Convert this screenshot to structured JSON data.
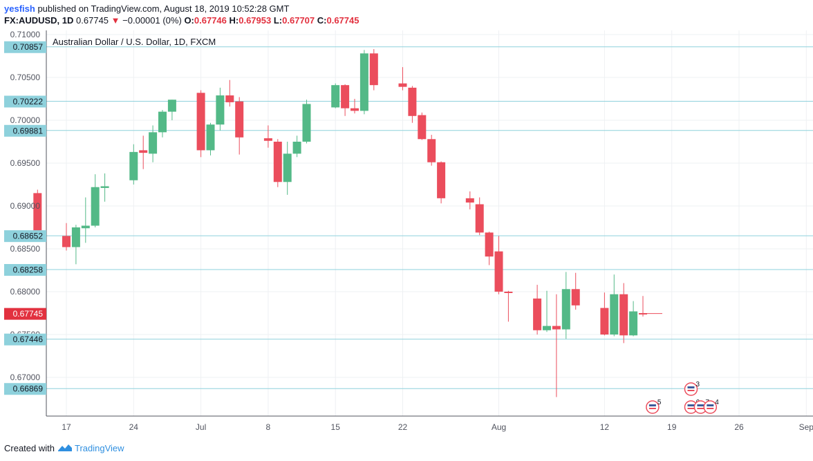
{
  "header": {
    "author": "yesfish",
    "published_text": "published on TradingView.com, August 18, 2019 10:52:28 GMT"
  },
  "ticker": {
    "symbol": "FX:AUDUSD, 1D",
    "last": "0.67745",
    "arrow": "▼",
    "change": "−0.00001 (0%)",
    "o_label": "O:",
    "o_value": "0.67746",
    "h_label": "H:",
    "h_value": "0.67953",
    "l_label": "L:",
    "l_value": "0.67707",
    "c_label": "C:",
    "c_value": "0.67745"
  },
  "footer": {
    "created_with": "Created with",
    "brand": "TradingView"
  },
  "colors": {
    "up": "#53b987",
    "down": "#eb4d5c",
    "hline": "#8ed1dc",
    "label_bg": "#8ed1dc",
    "price_bg": "#e2313f",
    "grid": "#eef0f3"
  },
  "chart_data": {
    "type": "candlestick",
    "title": "Australian Dollar / U.S. Dollar, 1D, FXCM",
    "ylim": [
      0.6655,
      0.7105
    ],
    "y_ticks": [
      "0.71000",
      "0.70500",
      "0.70000",
      "0.69500",
      "0.69000",
      "0.68500",
      "0.68000",
      "0.67500",
      "0.67000"
    ],
    "x_ticks": [
      {
        "label": "17",
        "date": "2019-06-17"
      },
      {
        "label": "24",
        "date": "2019-06-24"
      },
      {
        "label": "Jul",
        "date": "2019-07-01"
      },
      {
        "label": "8",
        "date": "2019-07-08"
      },
      {
        "label": "15",
        "date": "2019-07-15"
      },
      {
        "label": "22",
        "date": "2019-07-22"
      },
      {
        "label": "Aug",
        "date": "2019-08-01"
      },
      {
        "label": "12",
        "date": "2019-08-12"
      },
      {
        "label": "19",
        "date": "2019-08-19"
      },
      {
        "label": "26",
        "date": "2019-08-26"
      },
      {
        "label": "Sep",
        "date": "2019-09-02"
      }
    ],
    "horizontal_levels": [
      "0.70857",
      "0.70222",
      "0.69881",
      "0.68652",
      "0.68258",
      "0.67446",
      "0.66869"
    ],
    "last_price": "0.67745",
    "candles": [
      {
        "date": "2019-06-14",
        "o": 0.6915,
        "h": 0.6919,
        "l": 0.686,
        "c": 0.6867
      },
      {
        "date": "2019-06-17",
        "o": 0.6865,
        "h": 0.688,
        "l": 0.6848,
        "c": 0.6852
      },
      {
        "date": "2019-06-18",
        "o": 0.6852,
        "h": 0.6878,
        "l": 0.6832,
        "c": 0.6875
      },
      {
        "date": "2019-06-19",
        "o": 0.6874,
        "h": 0.691,
        "l": 0.6857,
        "c": 0.6877
      },
      {
        "date": "2019-06-20",
        "o": 0.6877,
        "h": 0.6937,
        "l": 0.6875,
        "c": 0.6922
      },
      {
        "date": "2019-06-21",
        "o": 0.6921,
        "h": 0.6938,
        "l": 0.6905,
        "c": 0.6923
      },
      {
        "date": "2019-06-24",
        "o": 0.693,
        "h": 0.6972,
        "l": 0.6925,
        "c": 0.6963
      },
      {
        "date": "2019-06-25",
        "o": 0.6965,
        "h": 0.6982,
        "l": 0.6943,
        "c": 0.6962
      },
      {
        "date": "2019-06-26",
        "o": 0.6961,
        "h": 0.6994,
        "l": 0.6951,
        "c": 0.6986
      },
      {
        "date": "2019-06-27",
        "o": 0.6986,
        "h": 0.7012,
        "l": 0.698,
        "c": 0.701
      },
      {
        "date": "2019-06-28",
        "o": 0.701,
        "h": 0.7024,
        "l": 0.7,
        "c": 0.7024
      },
      {
        "date": "2019-07-01",
        "o": 0.7032,
        "h": 0.7035,
        "l": 0.6957,
        "c": 0.6965
      },
      {
        "date": "2019-07-02",
        "o": 0.6965,
        "h": 0.6997,
        "l": 0.6959,
        "c": 0.6995
      },
      {
        "date": "2019-07-03",
        "o": 0.6995,
        "h": 0.7038,
        "l": 0.6988,
        "c": 0.7029
      },
      {
        "date": "2019-07-04",
        "o": 0.7029,
        "h": 0.7047,
        "l": 0.7016,
        "c": 0.7021
      },
      {
        "date": "2019-07-05",
        "o": 0.7022,
        "h": 0.7027,
        "l": 0.696,
        "c": 0.698
      },
      {
        "date": "2019-07-08",
        "o": 0.6979,
        "h": 0.6994,
        "l": 0.6968,
        "c": 0.6976
      },
      {
        "date": "2019-07-09",
        "o": 0.6975,
        "h": 0.6978,
        "l": 0.6922,
        "c": 0.6928
      },
      {
        "date": "2019-07-10",
        "o": 0.6928,
        "h": 0.6975,
        "l": 0.6913,
        "c": 0.6961
      },
      {
        "date": "2019-07-11",
        "o": 0.6961,
        "h": 0.6982,
        "l": 0.6957,
        "c": 0.6975
      },
      {
        "date": "2019-07-12",
        "o": 0.6975,
        "h": 0.7024,
        "l": 0.6973,
        "c": 0.7019
      },
      {
        "date": "2019-07-15",
        "o": 0.7015,
        "h": 0.7043,
        "l": 0.7014,
        "c": 0.7041
      },
      {
        "date": "2019-07-16",
        "o": 0.7041,
        "h": 0.7042,
        "l": 0.7005,
        "c": 0.7014
      },
      {
        "date": "2019-07-17",
        "o": 0.7014,
        "h": 0.7025,
        "l": 0.7008,
        "c": 0.7011
      },
      {
        "date": "2019-07-18",
        "o": 0.7011,
        "h": 0.7082,
        "l": 0.7007,
        "c": 0.7078
      },
      {
        "date": "2019-07-19",
        "o": 0.7078,
        "h": 0.7083,
        "l": 0.7035,
        "c": 0.7041
      },
      {
        "date": "2019-07-22",
        "o": 0.7043,
        "h": 0.7062,
        "l": 0.7035,
        "c": 0.7039
      },
      {
        "date": "2019-07-23",
        "o": 0.7038,
        "h": 0.704,
        "l": 0.6997,
        "c": 0.7005
      },
      {
        "date": "2019-07-24",
        "o": 0.7006,
        "h": 0.7009,
        "l": 0.6977,
        "c": 0.6978
      },
      {
        "date": "2019-07-25",
        "o": 0.6978,
        "h": 0.6983,
        "l": 0.6947,
        "c": 0.6951
      },
      {
        "date": "2019-07-26",
        "o": 0.6951,
        "h": 0.6952,
        "l": 0.6903,
        "c": 0.6909
      },
      {
        "date": "2019-07-29",
        "o": 0.6909,
        "h": 0.6917,
        "l": 0.6896,
        "c": 0.6904
      },
      {
        "date": "2019-07-30",
        "o": 0.6902,
        "h": 0.691,
        "l": 0.6866,
        "c": 0.6869
      },
      {
        "date": "2019-07-31",
        "o": 0.6869,
        "h": 0.687,
        "l": 0.6831,
        "c": 0.6841
      },
      {
        "date": "2019-08-01",
        "o": 0.6847,
        "h": 0.6865,
        "l": 0.6797,
        "c": 0.68
      },
      {
        "date": "2019-08-02",
        "o": 0.68,
        "h": 0.6801,
        "l": 0.6765,
        "c": 0.6799
      },
      {
        "date": "2019-08-05",
        "o": 0.6792,
        "h": 0.6808,
        "l": 0.675,
        "c": 0.6755
      },
      {
        "date": "2019-08-06",
        "o": 0.6755,
        "h": 0.6801,
        "l": 0.6753,
        "c": 0.676
      },
      {
        "date": "2019-08-07",
        "o": 0.676,
        "h": 0.6797,
        "l": 0.6677,
        "c": 0.6756
      },
      {
        "date": "2019-08-08",
        "o": 0.6756,
        "h": 0.6823,
        "l": 0.6745,
        "c": 0.6803
      },
      {
        "date": "2019-08-09",
        "o": 0.6803,
        "h": 0.6822,
        "l": 0.6779,
        "c": 0.6784
      },
      {
        "date": "2019-08-12",
        "o": 0.6781,
        "h": 0.6799,
        "l": 0.6749,
        "c": 0.675
      },
      {
        "date": "2019-08-13",
        "o": 0.675,
        "h": 0.682,
        "l": 0.6748,
        "c": 0.6797
      },
      {
        "date": "2019-08-14",
        "o": 0.6797,
        "h": 0.681,
        "l": 0.674,
        "c": 0.6749
      },
      {
        "date": "2019-08-15",
        "o": 0.6749,
        "h": 0.6789,
        "l": 0.6748,
        "c": 0.6777
      },
      {
        "date": "2019-08-16",
        "o": 0.6775,
        "h": 0.6795,
        "l": 0.6771,
        "c": 0.6774
      }
    ],
    "event_markers": [
      {
        "count": "5",
        "date": "2019-08-17"
      },
      {
        "count": "6",
        "date": "2019-08-21"
      },
      {
        "count": "3",
        "date": "2019-08-21"
      },
      {
        "count": "7",
        "date": "2019-08-22"
      },
      {
        "count": "4",
        "date": "2019-08-23"
      }
    ]
  }
}
